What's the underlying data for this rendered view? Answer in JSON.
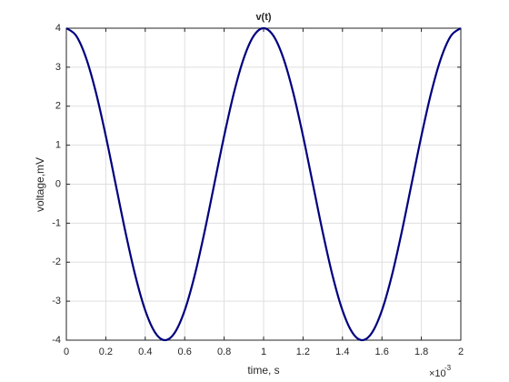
{
  "chart_data": {
    "type": "line",
    "title": "v(t)",
    "x_label": "time, s",
    "y_label": "voltage,mV",
    "x_multiplier": {
      "base": "×10",
      "exponent": "-3"
    },
    "xlim": [
      0,
      0.002
    ],
    "ylim": [
      -4,
      4
    ],
    "xticks": [
      0,
      {
        "value": 0.0002,
        "label": "0.2"
      },
      {
        "value": 0.0004,
        "label": "0.4"
      },
      {
        "value": 0.0006,
        "label": "0.6"
      },
      {
        "value": 0.0008,
        "label": "0.8"
      },
      {
        "value": 0.001,
        "label": "1"
      },
      {
        "value": 0.0012,
        "label": "1.2"
      },
      {
        "value": 0.0014,
        "label": "1.4"
      },
      {
        "value": 0.0016,
        "label": "1.6"
      },
      {
        "value": 0.0018,
        "label": "1.8"
      },
      {
        "value": 0.002,
        "label": "2"
      }
    ],
    "yticks": [
      -4,
      -3,
      -2,
      -1,
      0,
      1,
      2,
      3,
      4
    ],
    "grid": true,
    "x": [
      0,
      5e-05,
      0.0001,
      0.00015,
      0.0002,
      0.00025,
      0.0003,
      0.00035,
      0.0004,
      0.00045,
      0.0005,
      0.00055,
      0.0006,
      0.00065,
      0.0007,
      0.00075,
      0.0008,
      0.00085,
      0.0009,
      0.00095,
      0.001,
      0.00105,
      0.0011,
      0.00115,
      0.0012,
      0.00125,
      0.0013,
      0.00135,
      0.0014,
      0.00145,
      0.0015,
      0.00155,
      0.0016,
      0.00165,
      0.0017,
      0.00175,
      0.0018,
      0.00185,
      0.0019,
      0.00195,
      0.002
    ],
    "series": [
      {
        "color": "#00007f",
        "values": [
          4,
          3.804,
          3.236,
          2.351,
          1.236,
          0,
          -1.236,
          -2.351,
          -3.236,
          -3.804,
          -4,
          -3.804,
          -3.236,
          -2.351,
          -1.236,
          0,
          1.236,
          2.351,
          3.236,
          3.804,
          4,
          3.804,
          3.236,
          2.351,
          1.236,
          0,
          -1.236,
          -2.351,
          -3.236,
          -3.804,
          -4,
          -3.804,
          -3.236,
          -2.351,
          -1.236,
          0,
          1.236,
          2.351,
          3.236,
          3.804,
          4
        ]
      }
    ]
  }
}
